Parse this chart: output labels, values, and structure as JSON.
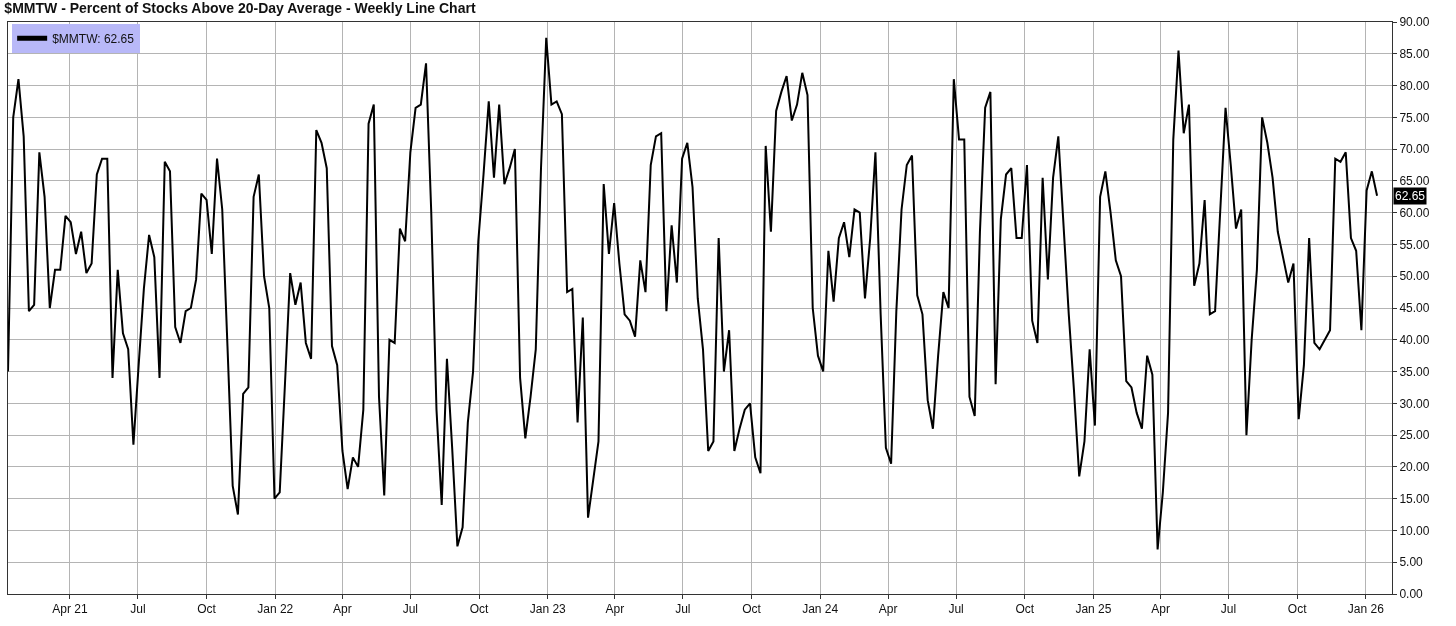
{
  "chart_data": {
    "type": "line",
    "title": "$MMTW - Percent of Stocks Above 20-Day Average - Weekly Line Chart",
    "x": [
      "2021-01-08",
      "2021-01-15",
      "2021-01-22",
      "2021-01-29",
      "2021-02-05",
      "2021-02-12",
      "2021-02-19",
      "2021-02-26",
      "2021-03-05",
      "2021-03-12",
      "2021-03-19",
      "2021-03-26",
      "2021-04-02",
      "2021-04-09",
      "2021-04-16",
      "2021-04-23",
      "2021-04-30",
      "2021-05-07",
      "2021-05-14",
      "2021-05-21",
      "2021-05-28",
      "2021-06-04",
      "2021-06-11",
      "2021-06-18",
      "2021-06-25",
      "2021-07-02",
      "2021-07-09",
      "2021-07-16",
      "2021-07-23",
      "2021-07-30",
      "2021-08-06",
      "2021-08-13",
      "2021-08-20",
      "2021-08-27",
      "2021-09-03",
      "2021-09-10",
      "2021-09-17",
      "2021-09-24",
      "2021-10-01",
      "2021-10-08",
      "2021-10-15",
      "2021-10-22",
      "2021-10-29",
      "2021-11-05",
      "2021-11-12",
      "2021-11-19",
      "2021-11-26",
      "2021-12-03",
      "2021-12-10",
      "2021-12-17",
      "2021-12-24",
      "2021-12-31",
      "2022-01-07",
      "2022-01-14",
      "2022-01-21",
      "2022-01-28",
      "2022-02-04",
      "2022-02-11",
      "2022-02-18",
      "2022-02-25",
      "2022-03-04",
      "2022-03-11",
      "2022-03-18",
      "2022-03-25",
      "2022-04-01",
      "2022-04-08",
      "2022-04-15",
      "2022-04-22",
      "2022-04-29",
      "2022-05-06",
      "2022-05-13",
      "2022-05-20",
      "2022-05-27",
      "2022-06-03",
      "2022-06-10",
      "2022-06-17",
      "2022-06-24",
      "2022-07-01",
      "2022-07-08",
      "2022-07-15",
      "2022-07-22",
      "2022-07-29",
      "2022-08-05",
      "2022-08-12",
      "2022-08-19",
      "2022-08-26",
      "2022-09-02",
      "2022-09-09",
      "2022-09-16",
      "2022-09-23",
      "2022-09-30",
      "2022-10-07",
      "2022-10-14",
      "2022-10-21",
      "2022-10-28",
      "2022-11-04",
      "2022-11-11",
      "2022-11-18",
      "2022-11-25",
      "2022-12-02",
      "2022-12-09",
      "2022-12-16",
      "2022-12-23",
      "2022-12-30",
      "2023-01-06",
      "2023-01-13",
      "2023-01-20",
      "2023-01-27",
      "2023-02-03",
      "2023-02-10",
      "2023-02-17",
      "2023-02-24",
      "2023-03-03",
      "2023-03-10",
      "2023-03-17",
      "2023-03-24",
      "2023-03-31",
      "2023-04-07",
      "2023-04-14",
      "2023-04-21",
      "2023-04-28",
      "2023-05-05",
      "2023-05-12",
      "2023-05-19",
      "2023-05-26",
      "2023-06-02",
      "2023-06-09",
      "2023-06-16",
      "2023-06-23",
      "2023-06-30",
      "2023-07-07",
      "2023-07-14",
      "2023-07-21",
      "2023-07-28",
      "2023-08-04",
      "2023-08-11",
      "2023-08-18",
      "2023-08-25",
      "2023-09-01",
      "2023-09-08",
      "2023-09-15",
      "2023-09-22",
      "2023-09-29",
      "2023-10-06",
      "2023-10-13",
      "2023-10-20",
      "2023-10-27",
      "2023-11-03",
      "2023-11-10",
      "2023-11-17",
      "2023-11-24",
      "2023-12-01",
      "2023-12-08",
      "2023-12-15",
      "2023-12-22",
      "2023-12-29",
      "2024-01-05",
      "2024-01-12",
      "2024-01-19",
      "2024-01-26",
      "2024-02-02",
      "2024-02-09",
      "2024-02-16",
      "2024-02-23",
      "2024-03-01",
      "2024-03-08",
      "2024-03-15",
      "2024-03-22",
      "2024-03-29",
      "2024-04-05",
      "2024-04-12",
      "2024-04-19",
      "2024-04-26",
      "2024-05-03",
      "2024-05-10",
      "2024-05-17",
      "2024-05-24",
      "2024-05-31",
      "2024-06-07",
      "2024-06-14",
      "2024-06-21",
      "2024-06-28",
      "2024-07-05",
      "2024-07-12",
      "2024-07-19",
      "2024-07-26",
      "2024-08-02",
      "2024-08-09",
      "2024-08-16",
      "2024-08-23",
      "2024-08-30",
      "2024-09-06",
      "2024-09-13",
      "2024-09-20",
      "2024-09-27",
      "2024-10-04",
      "2024-10-11",
      "2024-10-18",
      "2024-10-25",
      "2024-11-01",
      "2024-11-08",
      "2024-11-15",
      "2024-11-22",
      "2024-11-29",
      "2024-12-06",
      "2024-12-13",
      "2024-12-20",
      "2024-12-27",
      "2025-01-03",
      "2025-01-10",
      "2025-01-17",
      "2025-01-24",
      "2025-01-31",
      "2025-02-07",
      "2025-02-14",
      "2025-02-21",
      "2025-02-28",
      "2025-03-07",
      "2025-03-14",
      "2025-03-21",
      "2025-03-28",
      "2025-04-04",
      "2025-04-11",
      "2025-04-18",
      "2025-04-25",
      "2025-05-02",
      "2025-05-09",
      "2025-05-16",
      "2025-05-23",
      "2025-05-30",
      "2025-06-06",
      "2025-06-13",
      "2025-06-20",
      "2025-06-27",
      "2025-07-04",
      "2025-07-11",
      "2025-07-18",
      "2025-07-25",
      "2025-08-01",
      "2025-08-08",
      "2025-08-15",
      "2025-08-22",
      "2025-08-29",
      "2025-09-05",
      "2025-09-12",
      "2025-09-19",
      "2025-09-26",
      "2025-10-03",
      "2025-10-10",
      "2025-10-17",
      "2025-10-24",
      "2025-10-31",
      "2025-11-07",
      "2025-11-14",
      "2025-11-21",
      "2025-11-28",
      "2025-12-05",
      "2025-12-12",
      "2025-12-19",
      "2025-12-26",
      "2026-01-02",
      "2026-01-09",
      "2026-01-16"
    ],
    "series": [
      {
        "name": "$MMTW: 62.65",
        "color": "#000000",
        "values": [
          35,
          75,
          81,
          72,
          44.5,
          45.5,
          69.5,
          62.5,
          45,
          51,
          51,
          59.5,
          58.5,
          53.5,
          57,
          50.5,
          52,
          66,
          68.5,
          68.5,
          34,
          51,
          41,
          38.5,
          23.5,
          36,
          48,
          56.5,
          53,
          34,
          68,
          66.5,
          42,
          39.5,
          44.5,
          45,
          49.5,
          63,
          62,
          53.5,
          68.5,
          60.5,
          39,
          17,
          12.5,
          31.5,
          32.5,
          62.5,
          66,
          50,
          45,
          15,
          16,
          33,
          50.5,
          45.5,
          49,
          39.5,
          37,
          73,
          71,
          67,
          39,
          36,
          22.5,
          16.5,
          21.5,
          20,
          29,
          74,
          77,
          31,
          15.5,
          40,
          39.5,
          57.5,
          55.5,
          69.5,
          76.5,
          77,
          83.5,
          60,
          29,
          14,
          37,
          23,
          7.5,
          10.5,
          27,
          35,
          55.5,
          66,
          77.5,
          65.5,
          77,
          64.5,
          67,
          70,
          34,
          24.5,
          31,
          38.5,
          67,
          87.5,
          77,
          77.5,
          75.5,
          47.5,
          48,
          27,
          43.5,
          12,
          18,
          24,
          64.5,
          53.5,
          61.5,
          52,
          44,
          43,
          40.5,
          52.5,
          47.5,
          67.5,
          72,
          72.5,
          44.5,
          58,
          49,
          68.5,
          71,
          64,
          46.5,
          38.5,
          22.5,
          24,
          56,
          35,
          41.5,
          22.5,
          26,
          29,
          30,
          21.5,
          19,
          70.5,
          57,
          76,
          79,
          81.5,
          74.5,
          77,
          82,
          78.5,
          45,
          37.5,
          35,
          54,
          46,
          56,
          58.5,
          53,
          60.5,
          60,
          46.5,
          56,
          69.5,
          44,
          23,
          20.5,
          44.5,
          60.5,
          67.5,
          69,
          47,
          44,
          30.5,
          26,
          37.5,
          47.5,
          45,
          81,
          71.5,
          71.5,
          31,
          28,
          57,
          76.5,
          79,
          33,
          59,
          66,
          67,
          56,
          56,
          67.5,
          43,
          39.5,
          65.5,
          49.5,
          65.5,
          72,
          58,
          44,
          32,
          18.5,
          24,
          38.5,
          26.5,
          62.5,
          66.5,
          60,
          52.5,
          50,
          33.5,
          32.5,
          28.5,
          26,
          37.5,
          34.5,
          7,
          16,
          28.5,
          71.5,
          85.5,
          72.5,
          77,
          48.5,
          52,
          62,
          44,
          44.5,
          60.5,
          76.5,
          67.5,
          57.5,
          60.5,
          25,
          40,
          51,
          75,
          71,
          65.5,
          57,
          53,
          49,
          52,
          27.5,
          36,
          56,
          39.5,
          38.5,
          40,
          41.5,
          68.5,
          68,
          69.5,
          56,
          54,
          41.5,
          63.5,
          66.5,
          62.65
        ]
      }
    ],
    "annotations": [
      {
        "text": "62.65",
        "x": "2026-01-16",
        "y": 62.65
      }
    ],
    "xlim": [
      "2021-01-08",
      "2026-02-05"
    ],
    "xticks": [
      {
        "value": "2021-04-01",
        "label": "Apr 21"
      },
      {
        "value": "2021-07-01",
        "label": "Jul"
      },
      {
        "value": "2021-10-01",
        "label": "Oct"
      },
      {
        "value": "2022-01-01",
        "label": "Jan 22"
      },
      {
        "value": "2022-04-01",
        "label": "Apr"
      },
      {
        "value": "2022-07-01",
        "label": "Jul"
      },
      {
        "value": "2022-10-01",
        "label": "Oct"
      },
      {
        "value": "2023-01-01",
        "label": "Jan 23"
      },
      {
        "value": "2023-04-01",
        "label": "Apr"
      },
      {
        "value": "2023-07-01",
        "label": "Jul"
      },
      {
        "value": "2023-10-01",
        "label": "Oct"
      },
      {
        "value": "2024-01-01",
        "label": "Jan 24"
      },
      {
        "value": "2024-04-01",
        "label": "Apr"
      },
      {
        "value": "2024-07-01",
        "label": "Jul"
      },
      {
        "value": "2024-10-01",
        "label": "Oct"
      },
      {
        "value": "2025-01-01",
        "label": "Jan 25"
      },
      {
        "value": "2025-04-01",
        "label": "Apr"
      },
      {
        "value": "2025-07-01",
        "label": "Jul"
      },
      {
        "value": "2025-10-01",
        "label": "Oct"
      },
      {
        "value": "2026-01-01",
        "label": "Jan 26"
      }
    ],
    "ylim": [
      0,
      90
    ],
    "yticks": [
      {
        "value": 0,
        "label": "0.00"
      },
      {
        "value": 5,
        "label": "5.00"
      },
      {
        "value": 10,
        "label": "10.00"
      },
      {
        "value": 15,
        "label": "15.00"
      },
      {
        "value": 20,
        "label": "20.00"
      },
      {
        "value": 25,
        "label": "25.00"
      },
      {
        "value": 30,
        "label": "30.00"
      },
      {
        "value": 35,
        "label": "35.00"
      },
      {
        "value": 40,
        "label": "40.00"
      },
      {
        "value": 45,
        "label": "45.00"
      },
      {
        "value": 50,
        "label": "50.00"
      },
      {
        "value": 55,
        "label": "55.00"
      },
      {
        "value": 60,
        "label": "60.00"
      },
      {
        "value": 65,
        "label": "65.00"
      },
      {
        "value": 70,
        "label": "70.00"
      },
      {
        "value": 75,
        "label": "75.00"
      },
      {
        "value": 80,
        "label": "80.00"
      },
      {
        "value": 85,
        "label": "85.00"
      },
      {
        "value": 90,
        "label": "90.00"
      }
    ],
    "grid": true,
    "legend": "top left",
    "marker": "none",
    "line_style": "solid"
  }
}
